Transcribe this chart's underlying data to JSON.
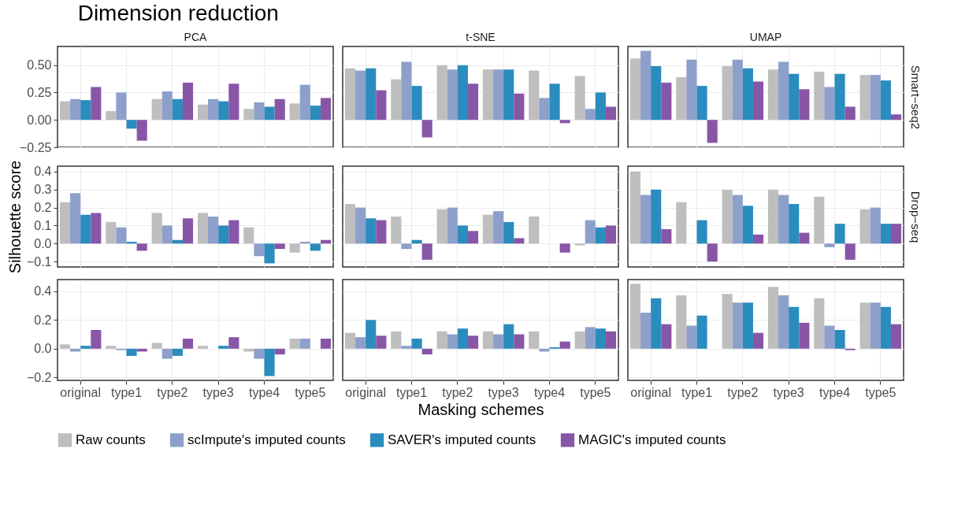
{
  "chart_data": [
    {
      "type": "bar",
      "title": "Dimension reduction",
      "subtitle": "PCA",
      "categories": [
        "original",
        "type1",
        "type2",
        "type3",
        "type4",
        "type5"
      ],
      "ylim": [
        -0.25,
        0.67
      ],
      "yticks": [
        {
          "value": -0.25,
          "label": "−0.25"
        },
        {
          "value": 0,
          "label": "0.00"
        },
        {
          "value": 0.25,
          "label": "0.25"
        },
        {
          "value": 0.5,
          "label": "0.50"
        }
      ],
      "grid": true,
      "legend": "bottom",
      "tick_labels": "y",
      "series": [
        {
          "name": "Raw counts",
          "color": "#bebebe",
          "values": [
            0.17,
            0.08,
            0.19,
            0.14,
            0.1,
            0.15
          ]
        },
        {
          "name": "scImpute's imputed counts",
          "color": "#8da0cb",
          "values": [
            0.19,
            0.25,
            0.26,
            0.19,
            0.16,
            0.32
          ]
        },
        {
          "name": "SAVER's imputed counts",
          "color": "#2b8cbe",
          "values": [
            0.18,
            -0.08,
            0.19,
            0.17,
            0.12,
            0.13
          ]
        },
        {
          "name": "MAGIC's imputed counts",
          "color": "#8856a7",
          "values": [
            0.3,
            -0.19,
            0.34,
            0.33,
            0.19,
            0.2
          ]
        }
      ]
    },
    {
      "type": "bar",
      "subtitle": "t-SNE",
      "categories": [
        "original",
        "type1",
        "type2",
        "type3",
        "type4",
        "type5"
      ],
      "ylim": [
        -0.25,
        0.67
      ],
      "yticks": [
        {
          "value": -0.25,
          "label": "−0.25"
        },
        {
          "value": 0,
          "label": "0.00"
        },
        {
          "value": 0.25,
          "label": "0.25"
        },
        {
          "value": 0.5,
          "label": "0.50"
        }
      ],
      "grid": true,
      "legend": "bottom",
      "tick_labels": false,
      "series": [
        {
          "name": "Raw counts",
          "color": "#bebebe",
          "values": [
            0.47,
            0.37,
            0.5,
            0.46,
            0.45,
            0.4
          ]
        },
        {
          "name": "scImpute's imputed counts",
          "color": "#8da0cb",
          "values": [
            0.45,
            0.53,
            0.46,
            0.46,
            0.2,
            0.1
          ]
        },
        {
          "name": "SAVER's imputed counts",
          "color": "#2b8cbe",
          "values": [
            0.47,
            0.31,
            0.5,
            0.46,
            0.33,
            0.25
          ]
        },
        {
          "name": "MAGIC's imputed counts",
          "color": "#8856a7",
          "values": [
            0.27,
            -0.16,
            0.33,
            0.24,
            -0.03,
            0.12
          ]
        }
      ]
    },
    {
      "type": "bar",
      "subtitle": "UMAP",
      "y2label": "Smart−seq2",
      "categories": [
        "original",
        "type1",
        "type2",
        "type3",
        "type4",
        "type5"
      ],
      "ylim": [
        -0.25,
        0.67
      ],
      "yticks": [
        {
          "value": -0.25,
          "label": "−0.25"
        },
        {
          "value": 0,
          "label": "0.00"
        },
        {
          "value": 0.25,
          "label": "0.25"
        },
        {
          "value": 0.5,
          "label": "0.50"
        }
      ],
      "grid": true,
      "legend": "bottom",
      "tick_labels": false,
      "series": [
        {
          "name": "Raw counts",
          "color": "#bebebe",
          "values": [
            0.56,
            0.39,
            0.49,
            0.46,
            0.44,
            0.41
          ]
        },
        {
          "name": "scImpute's imputed counts",
          "color": "#8da0cb",
          "values": [
            0.63,
            0.55,
            0.55,
            0.53,
            0.3,
            0.41
          ]
        },
        {
          "name": "SAVER's imputed counts",
          "color": "#2b8cbe",
          "values": [
            0.49,
            0.31,
            0.47,
            0.42,
            0.42,
            0.36
          ]
        },
        {
          "name": "MAGIC's imputed counts",
          "color": "#8856a7",
          "values": [
            0.34,
            -0.21,
            0.35,
            0.28,
            0.12,
            0.05
          ]
        }
      ]
    },
    {
      "type": "bar",
      "ylabel": "Silhouette score",
      "categories": [
        "original",
        "type1",
        "type2",
        "type3",
        "type4",
        "type5"
      ],
      "ylim": [
        -0.13,
        0.43
      ],
      "yticks": [
        {
          "value": -0.1,
          "label": "−0.1"
        },
        {
          "value": 0,
          "label": "0.0"
        },
        0.1,
        0.2,
        0.3,
        0.4
      ],
      "grid": true,
      "legend": "bottom",
      "tick_labels": "y",
      "series": [
        {
          "name": "Raw counts",
          "color": "#bebebe",
          "values": [
            0.23,
            0.12,
            0.17,
            0.17,
            0.09,
            -0.05
          ]
        },
        {
          "name": "scImpute's imputed counts",
          "color": "#8da0cb",
          "values": [
            0.28,
            0.09,
            0.1,
            0.15,
            -0.07,
            0.01
          ]
        },
        {
          "name": "SAVER's imputed counts",
          "color": "#2b8cbe",
          "values": [
            0.16,
            0.01,
            0.02,
            0.1,
            -0.11,
            -0.04
          ]
        },
        {
          "name": "MAGIC's imputed counts",
          "color": "#8856a7",
          "values": [
            0.17,
            -0.04,
            0.14,
            0.13,
            -0.03,
            0.02
          ]
        }
      ]
    },
    {
      "type": "bar",
      "categories": [
        "original",
        "type1",
        "type2",
        "type3",
        "type4",
        "type5"
      ],
      "ylim": [
        -0.13,
        0.43
      ],
      "yticks": [
        {
          "value": -0.1,
          "label": "−0.1"
        },
        {
          "value": 0,
          "label": "0.0"
        },
        0.1,
        0.2,
        0.3,
        0.4
      ],
      "grid": true,
      "legend": "bottom",
      "tick_labels": false,
      "series": [
        {
          "name": "Raw counts",
          "color": "#bebebe",
          "values": [
            0.22,
            0.15,
            0.19,
            0.16,
            0.15,
            -0.01
          ]
        },
        {
          "name": "scImpute's imputed counts",
          "color": "#8da0cb",
          "values": [
            0.2,
            -0.03,
            0.2,
            0.18,
            0.0,
            0.13
          ]
        },
        {
          "name": "SAVER's imputed counts",
          "color": "#2b8cbe",
          "values": [
            0.14,
            0.02,
            0.1,
            0.12,
            0.0,
            0.09
          ]
        },
        {
          "name": "MAGIC's imputed counts",
          "color": "#8856a7",
          "values": [
            0.13,
            -0.09,
            0.07,
            0.03,
            -0.05,
            0.1
          ]
        }
      ]
    },
    {
      "type": "bar",
      "y2label": "Drop−seq",
      "categories": [
        "original",
        "type1",
        "type2",
        "type3",
        "type4",
        "type5"
      ],
      "ylim": [
        -0.13,
        0.43
      ],
      "yticks": [
        {
          "value": -0.1,
          "label": "−0.1"
        },
        {
          "value": 0,
          "label": "0.0"
        },
        0.1,
        0.2,
        0.3,
        0.4
      ],
      "grid": true,
      "legend": "bottom",
      "tick_labels": false,
      "series": [
        {
          "name": "Raw counts",
          "color": "#bebebe",
          "values": [
            0.4,
            0.23,
            0.3,
            0.3,
            0.26,
            0.19
          ]
        },
        {
          "name": "scImpute's imputed counts",
          "color": "#8da0cb",
          "values": [
            0.27,
            0.0,
            0.27,
            0.27,
            -0.02,
            0.2
          ]
        },
        {
          "name": "SAVER's imputed counts",
          "color": "#2b8cbe",
          "values": [
            0.3,
            0.13,
            0.21,
            0.22,
            0.11,
            0.11
          ]
        },
        {
          "name": "MAGIC's imputed counts",
          "color": "#8856a7",
          "values": [
            0.08,
            -0.1,
            0.05,
            0.06,
            -0.09,
            0.11
          ]
        }
      ]
    },
    {
      "type": "bar",
      "categories": [
        "original",
        "type1",
        "type2",
        "type3",
        "type4",
        "type5"
      ],
      "ylim": [
        -0.22,
        0.48
      ],
      "yticks": [
        {
          "value": -0.2,
          "label": "−0.2"
        },
        {
          "value": 0,
          "label": "0.0"
        },
        0.2,
        0.4
      ],
      "grid": true,
      "legend": "bottom",
      "series": [
        {
          "name": "Raw counts",
          "color": "#bebebe",
          "values": [
            0.03,
            0.02,
            0.04,
            0.02,
            -0.02,
            0.07
          ]
        },
        {
          "name": "scImpute's imputed counts",
          "color": "#8da0cb",
          "values": [
            -0.02,
            -0.01,
            -0.07,
            0.0,
            -0.07,
            0.07
          ]
        },
        {
          "name": "SAVER's imputed counts",
          "color": "#2b8cbe",
          "values": [
            0.02,
            -0.05,
            -0.05,
            0.02,
            -0.19,
            0.0
          ]
        },
        {
          "name": "MAGIC's imputed counts",
          "color": "#8856a7",
          "values": [
            0.13,
            -0.02,
            0.07,
            0.08,
            -0.04,
            0.07
          ]
        }
      ]
    },
    {
      "type": "bar",
      "xlabel": "Masking schemes",
      "categories": [
        "original",
        "type1",
        "type2",
        "type3",
        "type4",
        "type5"
      ],
      "ylim": [
        -0.22,
        0.48
      ],
      "yticks": [
        {
          "value": -0.2,
          "label": "−0.2"
        },
        {
          "value": 0,
          "label": "0.0"
        },
        0.2,
        0.4
      ],
      "grid": true,
      "legend": "bottom",
      "tick_labels": "x",
      "series": [
        {
          "name": "Raw counts",
          "color": "#bebebe",
          "values": [
            0.11,
            0.12,
            0.12,
            0.12,
            0.12,
            0.12
          ]
        },
        {
          "name": "scImpute's imputed counts",
          "color": "#8da0cb",
          "values": [
            0.08,
            0.02,
            0.1,
            0.1,
            -0.02,
            0.15
          ]
        },
        {
          "name": "SAVER's imputed counts",
          "color": "#2b8cbe",
          "values": [
            0.2,
            0.07,
            0.14,
            0.17,
            0.01,
            0.14
          ]
        },
        {
          "name": "MAGIC's imputed counts",
          "color": "#8856a7",
          "values": [
            0.09,
            -0.04,
            0.09,
            0.1,
            0.05,
            0.12
          ]
        }
      ]
    },
    {
      "type": "bar",
      "categories": [
        "original",
        "type1",
        "type2",
        "type3",
        "type4",
        "type5"
      ],
      "ylim": [
        -0.22,
        0.48
      ],
      "yticks": [
        {
          "value": -0.2,
          "label": "−0.2"
        },
        {
          "value": 0,
          "label": "0.0"
        },
        0.2,
        0.4
      ],
      "grid": true,
      "legend": "bottom",
      "tick_labels": "x",
      "series": [
        {
          "name": "Raw counts",
          "color": "#bebebe",
          "values": [
            0.45,
            0.37,
            0.38,
            0.43,
            0.35,
            0.32
          ]
        },
        {
          "name": "scImpute's imputed counts",
          "color": "#8da0cb",
          "values": [
            0.25,
            0.16,
            0.32,
            0.37,
            0.16,
            0.32
          ]
        },
        {
          "name": "SAVER's imputed counts",
          "color": "#2b8cbe",
          "values": [
            0.35,
            0.23,
            0.32,
            0.29,
            0.13,
            0.29
          ]
        },
        {
          "name": "MAGIC's imputed counts",
          "color": "#8856a7",
          "values": [
            0.17,
            0.0,
            0.11,
            0.18,
            -0.01,
            0.17
          ]
        }
      ]
    }
  ]
}
